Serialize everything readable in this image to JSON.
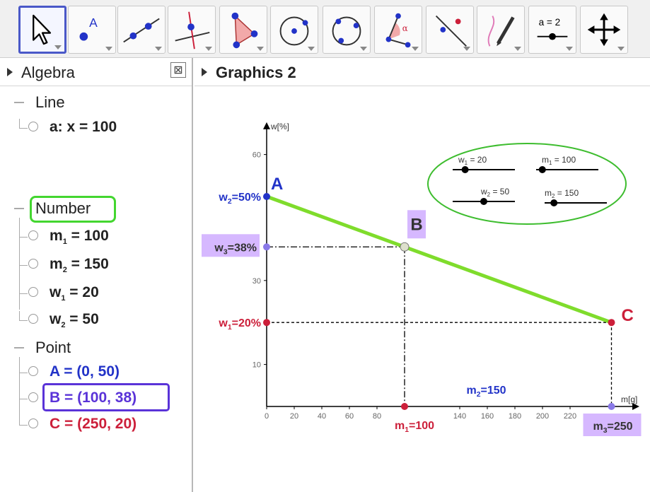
{
  "toolbar": {
    "tools": [
      {
        "name": "move-tool",
        "icon": "cursor-arrow-icon",
        "active": true
      },
      {
        "name": "point-tool",
        "icon": "point-icon",
        "label": "A"
      },
      {
        "name": "line-tool",
        "icon": "line-through-points-icon"
      },
      {
        "name": "perpendicular-line-tool",
        "icon": "perpendicular-line-icon"
      },
      {
        "name": "polygon-tool",
        "icon": "polygon-icon"
      },
      {
        "name": "circle-tool",
        "icon": "circle-center-point-icon"
      },
      {
        "name": "circle-three-points-tool",
        "icon": "circle-three-points-icon"
      },
      {
        "name": "angle-tool",
        "icon": "angle-icon",
        "label": "α"
      },
      {
        "name": "reflect-tool",
        "icon": "reflect-icon"
      },
      {
        "name": "freehand-tool",
        "icon": "pen-icon"
      },
      {
        "name": "slider-tool",
        "icon": "slider-icon",
        "label": "a = 2"
      },
      {
        "name": "move-graphics-view-tool",
        "icon": "move-arrows-icon"
      }
    ]
  },
  "algebra": {
    "title": "Algebra",
    "close_label": "⊠",
    "groups": {
      "line": {
        "name": "Line",
        "items": [
          {
            "label": "a: x = 100"
          }
        ]
      },
      "number": {
        "name": "Number",
        "items": [
          {
            "var": "m",
            "sub": "1",
            "value": " = 100"
          },
          {
            "var": "m",
            "sub": "2",
            "value": " = 150"
          },
          {
            "var": "w",
            "sub": "1",
            "value": " = 20"
          },
          {
            "var": "w",
            "sub": "2",
            "value": " = 50"
          }
        ]
      },
      "point": {
        "name": "Point",
        "items": [
          {
            "label": "A = (0, 50)"
          },
          {
            "label": "B = (100, 38)"
          },
          {
            "label": "C = (250, 20)"
          }
        ]
      }
    }
  },
  "graphics": {
    "title": "Graphics 2"
  },
  "colors": {
    "blue": "#2233c8",
    "red": "#cc1f3a",
    "green_line": "#7fdc2c",
    "purple_box": "#d6b8ff",
    "purple": "#5a33d8",
    "slider_ellipse": "#3ebd2f"
  },
  "chart_data": {
    "type": "line",
    "xlabel": "m[g]",
    "ylabel": "w[%]",
    "xlim": [
      0,
      260
    ],
    "ylim": [
      0,
      65
    ],
    "x_ticks": [
      0,
      20,
      40,
      60,
      80,
      140,
      160,
      180,
      200,
      220
    ],
    "y_ticks": [
      10,
      30,
      60
    ],
    "series": [
      {
        "points": [
          [
            0,
            50
          ],
          [
            250,
            20
          ]
        ]
      }
    ],
    "points": [
      {
        "name": "A",
        "x": 0,
        "y": 50
      },
      {
        "name": "B",
        "x": 100,
        "y": 38
      },
      {
        "name": "C",
        "x": 250,
        "y": 20
      }
    ],
    "axis_labels": {
      "w2": "w2=50%",
      "w3": "w3=38%",
      "w1": "w1=20%",
      "m1": "m1=100",
      "m2": "m2=150",
      "m3": "m3=250"
    },
    "sliders": [
      {
        "label": "w1 = 20",
        "var": "w",
        "sub": "1",
        "value": 20,
        "min": 0,
        "max": 100
      },
      {
        "label": "m1 = 100",
        "var": "m",
        "sub": "1",
        "value": 100,
        "min": 0,
        "max": 1000
      },
      {
        "label": "w2 = 50",
        "var": "w",
        "sub": "2",
        "value": 50,
        "min": 0,
        "max": 100
      },
      {
        "label": "m2 = 150",
        "var": "m",
        "sub": "2",
        "value": 150,
        "min": 0,
        "max": 1000
      }
    ]
  }
}
